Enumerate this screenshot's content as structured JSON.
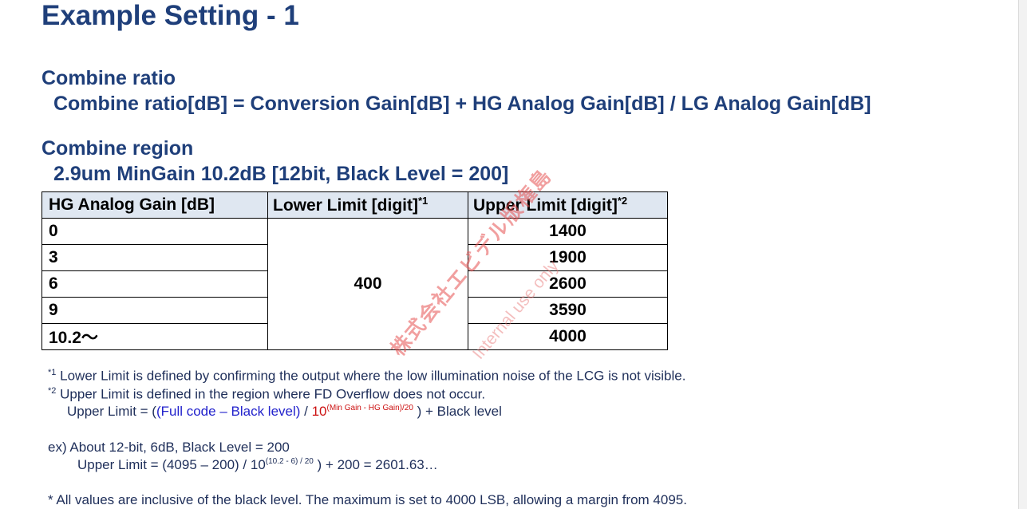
{
  "title": "Example Setting - 1",
  "combine_ratio": {
    "heading": "Combine ratio",
    "formula": "Combine ratio[dB] = Conversion Gain[dB] + HG Analog Gain[dB] / LG Analog Gain[dB]"
  },
  "combine_region": {
    "heading": "Combine region",
    "subheading": "2.9um MinGain 10.2dB [12bit, Black Level = 200]"
  },
  "table": {
    "headers": [
      "HG Analog Gain [dB]",
      "Lower Limit [digit]",
      "Upper Limit [digit]"
    ],
    "header_marks": [
      "",
      "*1",
      "*2"
    ],
    "lower_limit": "400",
    "rows": [
      {
        "gain": "0",
        "upper": "1400"
      },
      {
        "gain": "3",
        "upper": "1900"
      },
      {
        "gain": "6",
        "upper": "2600"
      },
      {
        "gain": "9",
        "upper": "3590"
      },
      {
        "gain": "10.2～",
        "upper": "4000"
      }
    ]
  },
  "notes": {
    "n1_mark": "*1",
    "n1": "Lower Limit is defined by confirming the output where the low illumination noise of the LCG is not visible.",
    "n2_mark": "*2",
    "n2": "Upper Limit is defined in the region where FD Overflow does not occur.",
    "formula_prefix": "Upper Limit = (",
    "formula_blue": "(Full code – Black level)",
    "formula_slash": " / ",
    "formula_red_base": "10",
    "formula_red_exp": "(Min Gain - HG Gain)/20",
    "formula_suffix": " ) + Black level",
    "ex_line": "ex)  About 12-bit, 6dB, Black Level = 200",
    "ex_calc_prefix": "Upper Limit = (4095 – 200) / 10",
    "ex_calc_exp": "(10.2 - 6) / 20",
    "ex_calc_suffix": " ) + 200 = 2601.63…",
    "footer": "* All values are inclusive of the black level. The maximum is set to 4000 LSB, allowing a margin from 4095."
  },
  "watermark": {
    "company": "株式会社エビデル版権島",
    "label": "Internal use only"
  }
}
